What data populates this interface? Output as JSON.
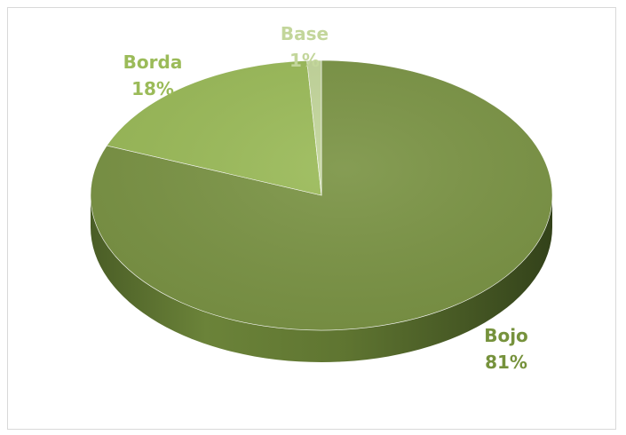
{
  "chart_data": {
    "type": "pie",
    "style": "3d",
    "title": "",
    "slices": [
      {
        "label": "Bojo",
        "value": 81,
        "percent_label": "81%",
        "color": "#7b9445"
      },
      {
        "label": "Borda",
        "value": 18,
        "percent_label": "18%",
        "color": "#9bbb59"
      },
      {
        "label": "Base",
        "value": 1,
        "percent_label": "1%",
        "color": "#c3d69b"
      }
    ],
    "label_colors": {
      "Bojo": "#76923c",
      "Borda": "#9bbb59",
      "Base": "#c3d69b"
    },
    "legend": "none"
  }
}
